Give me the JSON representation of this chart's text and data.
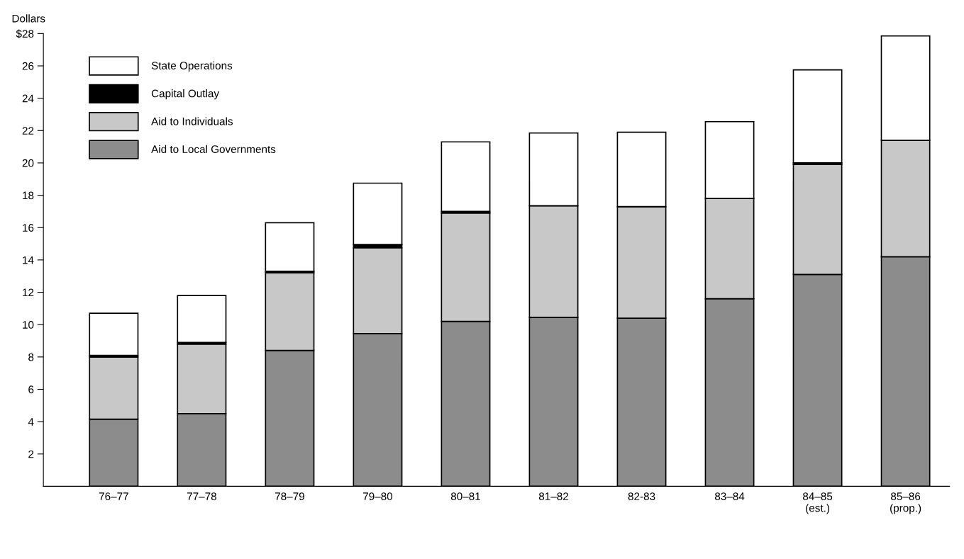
{
  "chart_data": {
    "type": "bar",
    "stacked": true,
    "ylabel": "Dollars",
    "categories": [
      "76–77",
      "77–78",
      "78–79",
      "79–80",
      "80–81",
      "81–82",
      "82-83",
      "83–84",
      "84–85\n(est.)",
      "85–86\n(prop.)"
    ],
    "series": [
      {
        "name": "Aid to Local Governments",
        "color": "#8c8c8c",
        "values": [
          4.15,
          4.5,
          8.4,
          9.45,
          10.2,
          10.45,
          10.4,
          11.6,
          13.1,
          14.2
        ]
      },
      {
        "name": "Aid to Individuals",
        "color": "#c8c8c8",
        "values": [
          3.85,
          4.3,
          4.8,
          5.3,
          6.7,
          6.9,
          6.9,
          6.2,
          6.8,
          7.2
        ]
      },
      {
        "name": "Capital Outlay",
        "color": "#000000",
        "values": [
          0.1,
          0.1,
          0.1,
          0.2,
          0.1,
          null,
          0,
          null,
          0.1,
          0
        ]
      },
      {
        "name": "State Operations",
        "color": "#ffffff",
        "values": [
          2.6,
          2.9,
          3.0,
          3.8,
          4.3,
          4.5,
          4.6,
          4.75,
          5.75,
          6.45
        ]
      }
    ],
    "ylim": [
      0,
      28
    ],
    "yticks": [
      2,
      4,
      6,
      8,
      10,
      12,
      14,
      16,
      18,
      20,
      22,
      24,
      26,
      {
        "value": 28,
        "label": "$28"
      }
    ],
    "grid": false,
    "legend": "top left"
  }
}
